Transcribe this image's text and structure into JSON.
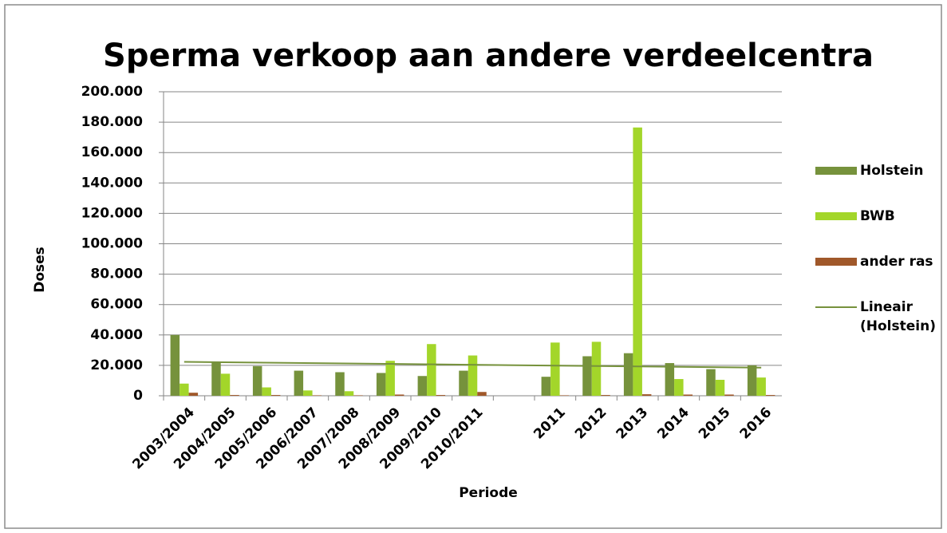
{
  "chart_data": {
    "type": "bar",
    "title": "Sperma verkoop aan andere verdeelcentra",
    "x_label": "Periode",
    "y_label": "Doses",
    "categories": [
      "2003/2004",
      "2004/2005",
      "2005/2006",
      "2006/2007",
      "2007/2008",
      "2008/2009",
      "2009/2010",
      "2010/2011",
      null,
      "2011",
      "2012",
      "2013",
      "2014",
      "2015",
      "2016"
    ],
    "series": [
      {
        "name": "Holstein",
        "color": "#76923c",
        "values": [
          40000,
          22500,
          19500,
          16500,
          15500,
          15000,
          13000,
          16500,
          null,
          12500,
          26000,
          28000,
          21500,
          17500,
          20000
        ]
      },
      {
        "name": "BWB",
        "color": "#a3d62a",
        "values": [
          8000,
          14500,
          5500,
          3500,
          3000,
          23000,
          34000,
          26500,
          null,
          35000,
          35500,
          176500,
          11000,
          10500,
          12000
        ]
      },
      {
        "name": "ander ras",
        "color": "#a0582a",
        "values": [
          2000,
          500,
          500,
          300,
          300,
          800,
          500,
          2500,
          null,
          300,
          500,
          1000,
          800,
          800,
          500
        ]
      }
    ],
    "trendline": {
      "name": "Lineair (Holstein)",
      "color": "#76923c",
      "values": [
        22300,
        18500
      ]
    },
    "ylim": [
      0,
      200000
    ],
    "yticks": [
      0,
      {
        "value": 20000,
        "label": "20.000"
      },
      {
        "value": 40000,
        "label": "40.000"
      },
      {
        "value": 60000,
        "label": "60.000"
      },
      {
        "value": 80000,
        "label": "80.000"
      },
      {
        "value": 100000,
        "label": "100.000"
      },
      {
        "value": 120000,
        "label": "120.000"
      },
      {
        "value": 140000,
        "label": "140.000"
      },
      {
        "value": 160000,
        "label": "160.000"
      },
      {
        "value": 180000,
        "label": "180.000"
      },
      {
        "value": 200000,
        "label": "200.000"
      }
    ],
    "grid": true,
    "legend": "right"
  }
}
